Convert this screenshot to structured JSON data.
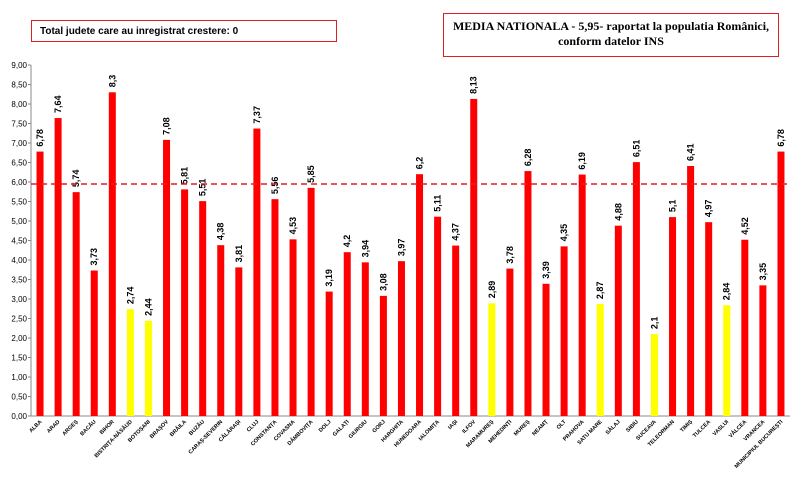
{
  "info_box": "Total judete care au inregistrat crestere: 0",
  "title": "MEDIA NATIONALA - 5,95-  raportat la populatia Românici, conform datelor INS",
  "chart_data": {
    "type": "bar",
    "categories": [
      "ALBA",
      "ARAD",
      "ARGEȘ",
      "BACĂU",
      "BIHOR",
      "BISTRIȚA-NĂSĂUD",
      "BOTOȘANI",
      "BRAȘOV",
      "BRĂILA",
      "BUZĂU",
      "CARAȘ-SEVERIN",
      "CĂLĂRAȘI",
      "CLUJ",
      "CONSTANȚA",
      "COVASNA",
      "DÂMBOVIȚA",
      "DOLJ",
      "GALAȚI",
      "GIURGIU",
      "GORJ",
      "HARGHITA",
      "HUNEDOARA",
      "IALOMIȚA",
      "IAȘI",
      "ILFOV",
      "MARAMUREȘ",
      "MEHEDINȚI",
      "MUREȘ",
      "NEAMȚ",
      "OLT",
      "PRAHOVA",
      "SATU MARE",
      "SĂLAJ",
      "SIBIU",
      "SUCEAVA",
      "TELEORMAN",
      "TIMIȘ",
      "TULCEA",
      "VASLUI",
      "VÂLCEA",
      "VRANCEA",
      "MUNICIPIUL BUCUREȘTI"
    ],
    "values": [
      6.78,
      7.64,
      5.74,
      3.73,
      8.3,
      2.74,
      2.44,
      7.08,
      5.81,
      5.51,
      4.38,
      3.81,
      7.37,
      5.56,
      4.53,
      5.85,
      3.19,
      4.2,
      3.94,
      3.08,
      3.97,
      6.2,
      5.11,
      4.37,
      8.13,
      2.89,
      3.78,
      6.28,
      3.39,
      4.35,
      6.19,
      2.87,
      4.88,
      6.51,
      2.1,
      5.1,
      6.41,
      4.97,
      2.84,
      4.52,
      3.35,
      6.78
    ],
    "value_labels": [
      "6,78",
      "7,64",
      "5,74",
      "3,73",
      "8,3",
      "2,74",
      "2,44",
      "7,08",
      "5,81",
      "5,51",
      "4,38",
      "3,81",
      "7,37",
      "5,56",
      "4,53",
      "5,85",
      "3,19",
      "4,2",
      "3,94",
      "3,08",
      "3,97",
      "6,2",
      "5,11",
      "4,37",
      "8,13",
      "2,89",
      "3,78",
      "6,28",
      "3,39",
      "4,35",
      "6,19",
      "2,87",
      "4,88",
      "6,51",
      "2,1",
      "5,1",
      "6,41",
      "4,97",
      "2,84",
      "4,52",
      "3,35",
      "6,78"
    ],
    "colors": [
      "#ff0000",
      "#ff0000",
      "#ff0000",
      "#ff0000",
      "#ff0000",
      "#ffff00",
      "#ffff00",
      "#ff0000",
      "#ff0000",
      "#ff0000",
      "#ff0000",
      "#ff0000",
      "#ff0000",
      "#ff0000",
      "#ff0000",
      "#ff0000",
      "#ff0000",
      "#ff0000",
      "#ff0000",
      "#ff0000",
      "#ff0000",
      "#ff0000",
      "#ff0000",
      "#ff0000",
      "#ff0000",
      "#ffff00",
      "#ff0000",
      "#ff0000",
      "#ff0000",
      "#ff0000",
      "#ff0000",
      "#ffff00",
      "#ff0000",
      "#ff0000",
      "#ffff00",
      "#ff0000",
      "#ff0000",
      "#ff0000",
      "#ffff00",
      "#ff0000",
      "#ff0000",
      "#ff0000"
    ],
    "average_line": 5.95,
    "average_line_color": "#e02020",
    "ylim": [
      0,
      9
    ],
    "yticks": [
      "0,00",
      "0,50",
      "1,00",
      "1,50",
      "2,00",
      "2,50",
      "3,00",
      "3,50",
      "4,00",
      "4,50",
      "5,00",
      "5,50",
      "6,00",
      "6,50",
      "7,00",
      "7,50",
      "8,00",
      "8,50",
      "9,00"
    ],
    "grid": false,
    "legend": "none"
  }
}
